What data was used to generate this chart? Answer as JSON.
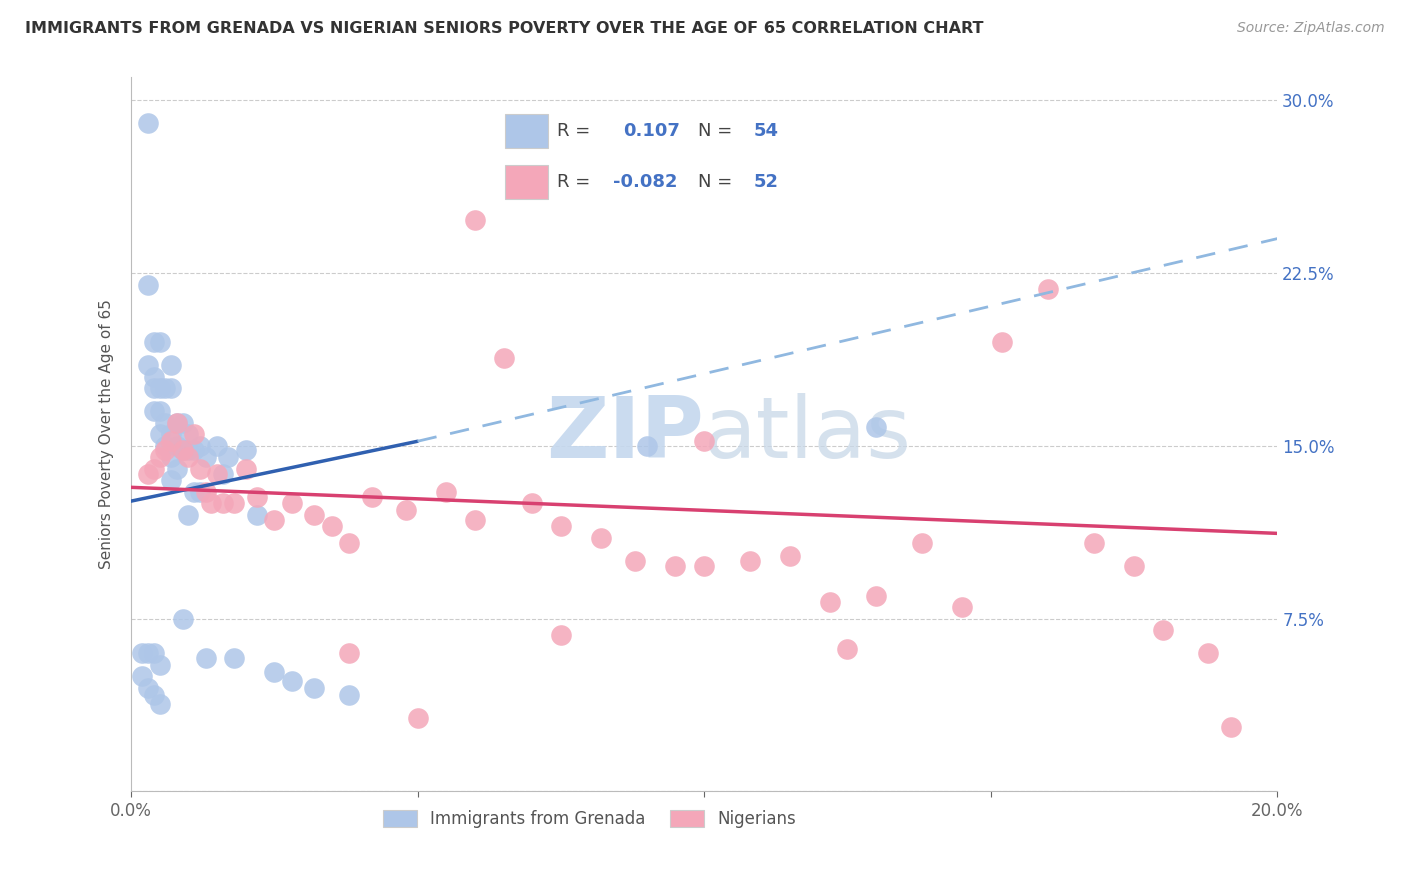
{
  "title": "IMMIGRANTS FROM GRENADA VS NIGERIAN SENIORS POVERTY OVER THE AGE OF 65 CORRELATION CHART",
  "source": "Source: ZipAtlas.com",
  "ylabel": "Seniors Poverty Over the Age of 65",
  "xlim": [
    0.0,
    0.2
  ],
  "ylim": [
    0.0,
    0.31
  ],
  "blue_color": "#aec6e8",
  "pink_color": "#f4a7b9",
  "blue_line_color": "#3060b0",
  "pink_line_color": "#d84070",
  "dashed_line_color": "#90b8e0",
  "watermark_color": "#d8e8f5",
  "blue_r": 0.107,
  "blue_n": 54,
  "pink_r": -0.082,
  "pink_n": 52,
  "blue_scatter_x": [
    0.002,
    0.002,
    0.003,
    0.003,
    0.003,
    0.003,
    0.003,
    0.004,
    0.004,
    0.004,
    0.004,
    0.004,
    0.004,
    0.005,
    0.005,
    0.005,
    0.005,
    0.005,
    0.005,
    0.006,
    0.006,
    0.006,
    0.007,
    0.007,
    0.007,
    0.007,
    0.007,
    0.008,
    0.008,
    0.008,
    0.009,
    0.009,
    0.009,
    0.01,
    0.01,
    0.01,
    0.011,
    0.011,
    0.012,
    0.012,
    0.013,
    0.013,
    0.015,
    0.016,
    0.017,
    0.018,
    0.02,
    0.022,
    0.025,
    0.028,
    0.032,
    0.038,
    0.09,
    0.13
  ],
  "blue_scatter_y": [
    0.06,
    0.05,
    0.29,
    0.22,
    0.185,
    0.06,
    0.045,
    0.195,
    0.18,
    0.175,
    0.165,
    0.06,
    0.042,
    0.195,
    0.175,
    0.165,
    0.155,
    0.055,
    0.038,
    0.175,
    0.16,
    0.15,
    0.185,
    0.175,
    0.155,
    0.145,
    0.135,
    0.16,
    0.15,
    0.14,
    0.16,
    0.148,
    0.075,
    0.155,
    0.148,
    0.12,
    0.148,
    0.13,
    0.15,
    0.13,
    0.145,
    0.058,
    0.15,
    0.138,
    0.145,
    0.058,
    0.148,
    0.12,
    0.052,
    0.048,
    0.045,
    0.042,
    0.15,
    0.158
  ],
  "pink_scatter_x": [
    0.003,
    0.004,
    0.005,
    0.006,
    0.007,
    0.008,
    0.009,
    0.01,
    0.011,
    0.012,
    0.013,
    0.014,
    0.015,
    0.016,
    0.018,
    0.02,
    0.022,
    0.025,
    0.028,
    0.032,
    0.035,
    0.038,
    0.042,
    0.048,
    0.055,
    0.06,
    0.065,
    0.07,
    0.075,
    0.082,
    0.088,
    0.095,
    0.1,
    0.108,
    0.115,
    0.122,
    0.13,
    0.138,
    0.145,
    0.152,
    0.16,
    0.168,
    0.175,
    0.18,
    0.188,
    0.192,
    0.05,
    0.075,
    0.1,
    0.125,
    0.038,
    0.06
  ],
  "pink_scatter_y": [
    0.138,
    0.14,
    0.145,
    0.148,
    0.152,
    0.16,
    0.148,
    0.145,
    0.155,
    0.14,
    0.13,
    0.125,
    0.138,
    0.125,
    0.125,
    0.14,
    0.128,
    0.118,
    0.125,
    0.12,
    0.115,
    0.108,
    0.128,
    0.122,
    0.13,
    0.118,
    0.188,
    0.125,
    0.115,
    0.11,
    0.1,
    0.098,
    0.152,
    0.1,
    0.102,
    0.082,
    0.085,
    0.108,
    0.08,
    0.195,
    0.218,
    0.108,
    0.098,
    0.07,
    0.06,
    0.028,
    0.032,
    0.068,
    0.098,
    0.062,
    0.06,
    0.248
  ]
}
